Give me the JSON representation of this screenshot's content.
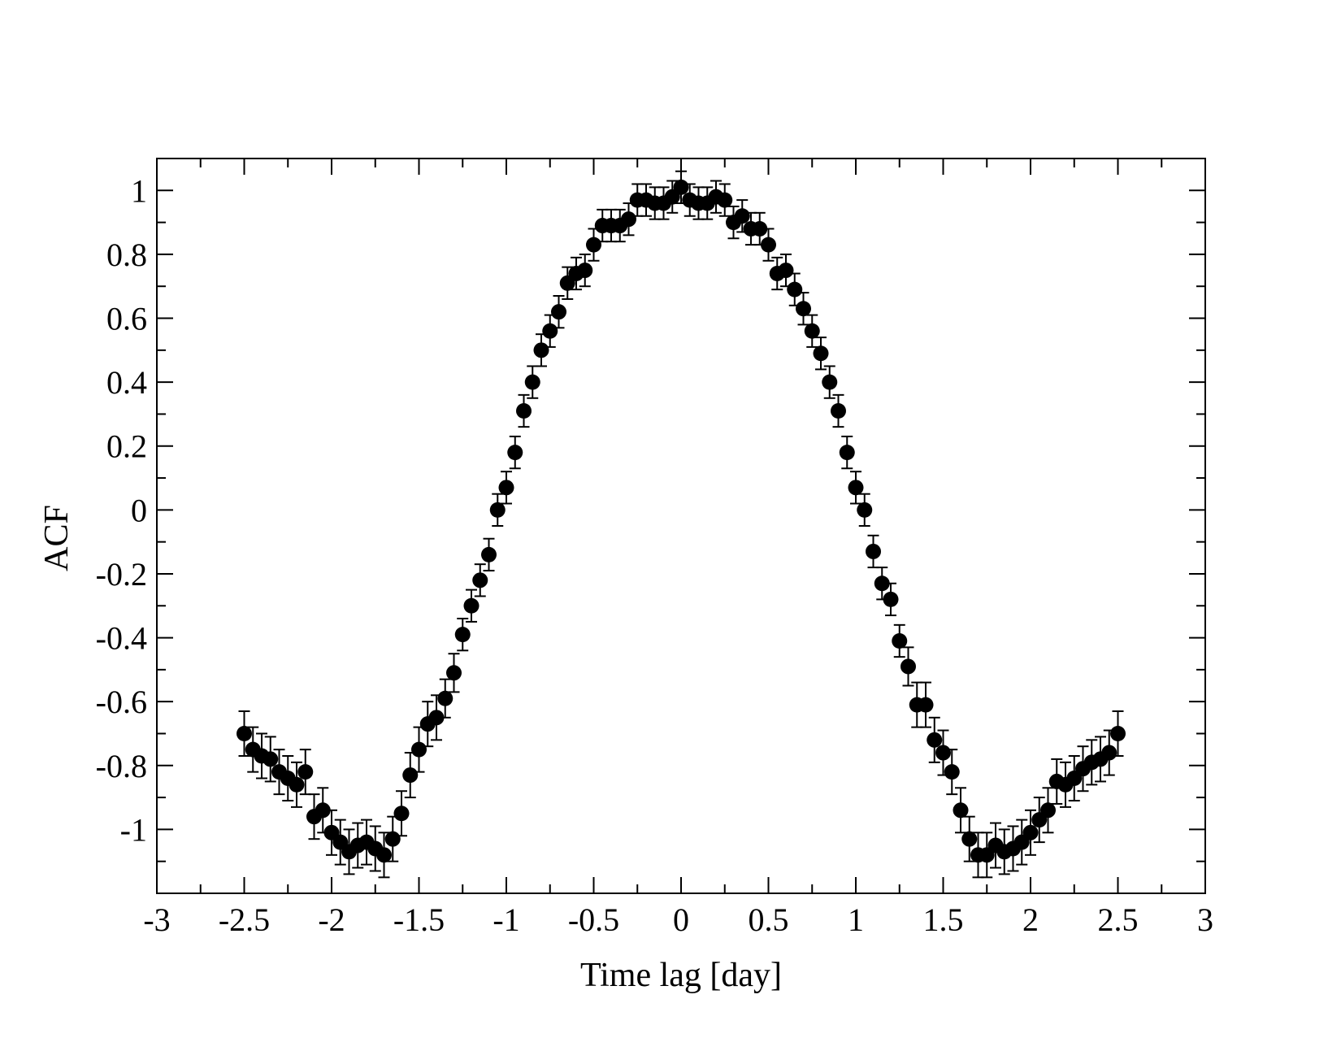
{
  "chart_data": {
    "type": "scatter",
    "title": "",
    "xlabel": "Time lag [day]",
    "ylabel": "ACF",
    "xlim": [
      -3,
      3
    ],
    "ylim": [
      -1.2,
      1.1
    ],
    "x_ticks": [
      -3,
      -2.5,
      -2,
      -1.5,
      -1,
      -0.5,
      0,
      0.5,
      1,
      1.5,
      2,
      2.5,
      3
    ],
    "x_tick_labels": [
      "-3",
      "-2.5",
      "-2",
      "-1.5",
      "-1",
      "-0.5",
      "0",
      "0.5",
      "1",
      "1.5",
      "2",
      "2.5",
      "3"
    ],
    "y_ticks": [
      -1,
      -0.8,
      -0.6,
      -0.4,
      -0.2,
      0,
      0.2,
      0.4,
      0.6,
      0.8,
      1
    ],
    "y_tick_labels": [
      "-1",
      "-0.8",
      "-0.6",
      "-0.4",
      "-0.2",
      "0",
      "0.2",
      "0.4",
      "0.6",
      "0.8",
      "1"
    ],
    "grid": false,
    "marker_color": "#000000",
    "series": [
      {
        "x": [
          -2.5,
          -2.45,
          -2.4,
          -2.35,
          -2.3,
          -2.25,
          -2.2,
          -2.15,
          -2.1,
          -2.05,
          -2.0,
          -1.95,
          -1.9,
          -1.85,
          -1.8,
          -1.75,
          -1.7,
          -1.65,
          -1.6,
          -1.55,
          -1.5,
          -1.45,
          -1.4,
          -1.35,
          -1.3,
          -1.25,
          -1.2,
          -1.15,
          -1.1,
          -1.05,
          -1.0,
          -0.95,
          -0.9,
          -0.85,
          -0.8,
          -0.75,
          -0.7,
          -0.65,
          -0.6,
          -0.55,
          -0.5,
          -0.45,
          -0.4,
          -0.35,
          -0.3,
          -0.25,
          -0.2,
          -0.15,
          -0.1,
          -0.05,
          0.0,
          0.05,
          0.1,
          0.15,
          0.2,
          0.25,
          0.3,
          0.35,
          0.4,
          0.45,
          0.5,
          0.55,
          0.6,
          0.65,
          0.7,
          0.75,
          0.8,
          0.85,
          0.9,
          0.95,
          1.0,
          1.05,
          1.1,
          1.15,
          1.2,
          1.25,
          1.3,
          1.35,
          1.4,
          1.45,
          1.5,
          1.55,
          1.6,
          1.65,
          1.7,
          1.75,
          1.8,
          1.85,
          1.9,
          1.95,
          2.0,
          2.05,
          2.1,
          2.15,
          2.2,
          2.25,
          2.3,
          2.35,
          2.4,
          2.45,
          2.5
        ],
        "y": [
          -0.7,
          -0.75,
          -0.77,
          -0.78,
          -0.82,
          -0.84,
          -0.86,
          -0.82,
          -0.96,
          -0.94,
          -1.01,
          -1.04,
          -1.07,
          -1.05,
          -1.04,
          -1.06,
          -1.08,
          -1.03,
          -0.95,
          -0.83,
          -0.75,
          -0.67,
          -0.65,
          -0.59,
          -0.51,
          -0.39,
          -0.3,
          -0.22,
          -0.14,
          0.0,
          0.07,
          0.18,
          0.31,
          0.4,
          0.5,
          0.56,
          0.62,
          0.71,
          0.74,
          0.75,
          0.83,
          0.89,
          0.89,
          0.89,
          0.91,
          0.97,
          0.97,
          0.96,
          0.96,
          0.98,
          1.01,
          0.97,
          0.96,
          0.96,
          0.98,
          0.97,
          0.9,
          0.92,
          0.88,
          0.88,
          0.83,
          0.74,
          0.75,
          0.69,
          0.63,
          0.56,
          0.49,
          0.4,
          0.31,
          0.18,
          0.07,
          0.0,
          -0.13,
          -0.23,
          -0.28,
          -0.41,
          -0.49,
          -0.61,
          -0.61,
          -0.72,
          -0.76,
          -0.82,
          -0.94,
          -1.03,
          -1.08,
          -1.08,
          -1.05,
          -1.07,
          -1.06,
          -1.04,
          -1.01,
          -0.97,
          -0.94,
          -0.85,
          -0.86,
          -0.84,
          -0.81,
          -0.79,
          -0.78,
          -0.76,
          -0.7
        ],
        "err": [
          0.07,
          0.07,
          0.07,
          0.07,
          0.07,
          0.07,
          0.07,
          0.07,
          0.07,
          0.07,
          0.07,
          0.07,
          0.07,
          0.07,
          0.07,
          0.07,
          0.07,
          0.07,
          0.07,
          0.07,
          0.07,
          0.07,
          0.07,
          0.06,
          0.06,
          0.05,
          0.05,
          0.05,
          0.05,
          0.05,
          0.05,
          0.05,
          0.05,
          0.05,
          0.05,
          0.05,
          0.05,
          0.05,
          0.05,
          0.05,
          0.05,
          0.05,
          0.05,
          0.05,
          0.05,
          0.05,
          0.05,
          0.05,
          0.05,
          0.05,
          0.05,
          0.05,
          0.05,
          0.05,
          0.05,
          0.05,
          0.05,
          0.05,
          0.05,
          0.05,
          0.05,
          0.05,
          0.05,
          0.05,
          0.05,
          0.05,
          0.05,
          0.05,
          0.05,
          0.05,
          0.05,
          0.05,
          0.05,
          0.05,
          0.05,
          0.05,
          0.06,
          0.07,
          0.07,
          0.07,
          0.07,
          0.07,
          0.07,
          0.07,
          0.07,
          0.07,
          0.07,
          0.07,
          0.07,
          0.07,
          0.07,
          0.07,
          0.07,
          0.07,
          0.07,
          0.07,
          0.07,
          0.07,
          0.07,
          0.07,
          0.07
        ]
      }
    ]
  }
}
